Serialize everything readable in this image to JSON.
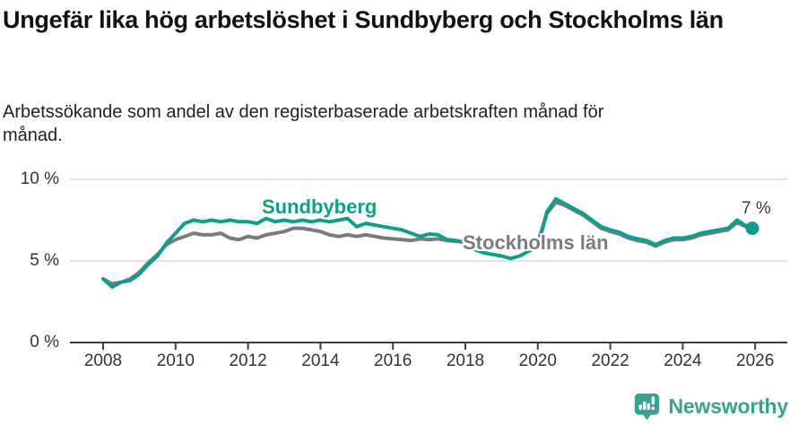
{
  "header": {
    "title": "Ungefär lika hög arbetslöshet i Sundbyberg och Stockholms län",
    "subtitle": "Arbetssökande som andel av den registerbaserade arbetskraften månad för månad."
  },
  "colors": {
    "series_sundbyberg": "#0f9e8e",
    "series_stockholm": "#7b7b7b",
    "axis_line": "#3f3f3f",
    "grid_line": "#dadada",
    "tick_text": "#333333",
    "annotation_text": "#3a3a3a",
    "brand_teal": "#3ba18f",
    "background": "#ffffff"
  },
  "chart_data": {
    "type": "line",
    "unit": "%",
    "grid": "horizontal-only",
    "legend": "inline-series-labels",
    "xlim": [
      2007.1,
      2026.9
    ],
    "ylim": [
      0,
      10.5
    ],
    "yticks": [
      {
        "value": 0,
        "label": "0 %"
      },
      {
        "value": 5,
        "label": "5 %"
      },
      {
        "value": 10,
        "label": "10 %"
      }
    ],
    "xticks": [
      {
        "value": 2008,
        "label": "2008"
      },
      {
        "value": 2010,
        "label": "2010"
      },
      {
        "value": 2012,
        "label": "2012"
      },
      {
        "value": 2014,
        "label": "2014"
      },
      {
        "value": 2016,
        "label": "2016"
      },
      {
        "value": 2018,
        "label": "2018"
      },
      {
        "value": 2020,
        "label": "2020"
      },
      {
        "value": 2022,
        "label": "2022"
      },
      {
        "value": 2024,
        "label": "2024"
      },
      {
        "value": 2026,
        "label": "2026"
      }
    ],
    "x_years": [
      2008.0,
      2008.25,
      2008.5,
      2008.75,
      2009.0,
      2009.25,
      2009.5,
      2009.75,
      2010.0,
      2010.25,
      2010.5,
      2010.75,
      2011.0,
      2011.25,
      2011.5,
      2011.75,
      2012.0,
      2012.25,
      2012.5,
      2012.75,
      2013.0,
      2013.25,
      2013.5,
      2013.75,
      2014.0,
      2014.25,
      2014.5,
      2014.75,
      2015.0,
      2015.25,
      2015.5,
      2015.75,
      2016.0,
      2016.25,
      2016.5,
      2016.75,
      2017.0,
      2017.25,
      2017.5,
      2017.75,
      2018.0,
      2018.25,
      2018.5,
      2018.75,
      2019.0,
      2019.25,
      2019.5,
      2019.75,
      2020.0,
      2020.25,
      2020.5,
      2020.75,
      2021.0,
      2021.25,
      2021.5,
      2021.75,
      2022.0,
      2022.25,
      2022.5,
      2022.75,
      2023.0,
      2023.25,
      2023.5,
      2023.75,
      2024.0,
      2024.25,
      2024.5,
      2024.75,
      2025.0,
      2025.25,
      2025.5,
      2025.75,
      2025.92
    ],
    "series": [
      {
        "name": "Sundbyberg",
        "color": "#0f9e8e",
        "end_dot": true,
        "end_label": "7 %",
        "values": [
          3.9,
          3.4,
          3.7,
          3.8,
          4.2,
          4.8,
          5.3,
          6.1,
          6.7,
          7.3,
          7.5,
          7.4,
          7.5,
          7.4,
          7.5,
          7.4,
          7.4,
          7.3,
          7.6,
          7.4,
          7.5,
          7.4,
          7.5,
          7.4,
          7.5,
          7.4,
          7.5,
          7.6,
          7.1,
          7.3,
          7.2,
          7.1,
          7.0,
          6.9,
          6.7,
          6.5,
          6.65,
          6.6,
          6.3,
          6.25,
          6.1,
          5.7,
          5.5,
          5.4,
          5.3,
          5.15,
          5.3,
          5.6,
          5.9,
          8.0,
          8.8,
          8.5,
          8.2,
          7.9,
          7.5,
          7.1,
          6.9,
          6.75,
          6.5,
          6.35,
          6.25,
          6.0,
          6.25,
          6.4,
          6.4,
          6.5,
          6.7,
          6.8,
          6.9,
          7.0,
          7.5,
          7.15,
          7.0
        ]
      },
      {
        "name": "Stockholms län",
        "color": "#7b7b7b",
        "end_dot": false,
        "end_label": "",
        "values": [
          3.9,
          3.6,
          3.7,
          3.9,
          4.3,
          4.9,
          5.4,
          6.0,
          6.3,
          6.5,
          6.7,
          6.6,
          6.6,
          6.7,
          6.4,
          6.3,
          6.5,
          6.4,
          6.6,
          6.7,
          6.8,
          7.0,
          7.0,
          6.9,
          6.8,
          6.6,
          6.5,
          6.6,
          6.5,
          6.6,
          6.5,
          6.4,
          6.35,
          6.3,
          6.25,
          6.35,
          6.3,
          6.35,
          6.25,
          6.2,
          6.2,
          6.0,
          6.0,
          6.0,
          5.9,
          6.0,
          6.0,
          6.1,
          6.1,
          7.9,
          8.6,
          8.4,
          8.1,
          7.8,
          7.4,
          7.0,
          6.8,
          6.65,
          6.4,
          6.25,
          6.15,
          5.9,
          6.15,
          6.3,
          6.3,
          6.4,
          6.6,
          6.7,
          6.8,
          6.9,
          7.35,
          7.1,
          6.9
        ]
      }
    ]
  },
  "footer": {
    "brand": "Newsworthy"
  }
}
